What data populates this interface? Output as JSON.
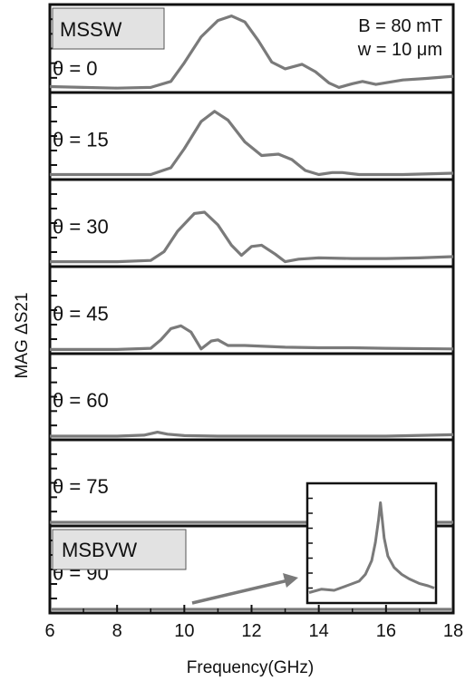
{
  "chart_data": {
    "type": "line",
    "title": "",
    "xlabel": "Frequency(GHz)",
    "ylabel": "MAG ΔS21",
    "xlim": [
      6,
      18
    ],
    "x_ticks": [
      6,
      8,
      10,
      12,
      14,
      16,
      18
    ],
    "annotation": {
      "field": "B = 80 mT",
      "width": "w = 10 μm"
    },
    "mode_labels": {
      "top": "MSSW",
      "bottom": "MSBVW"
    },
    "line_color": "#7a7a7a",
    "label_box_color": "#e2e2e2",
    "panels": [
      {
        "label": "θ = 0",
        "theta": 0,
        "points": [
          [
            6.0,
            0.03
          ],
          [
            7.0,
            0.02
          ],
          [
            8.0,
            0.01
          ],
          [
            9.0,
            0.02
          ],
          [
            9.6,
            0.1
          ],
          [
            10.0,
            0.35
          ],
          [
            10.5,
            0.7
          ],
          [
            11.0,
            0.92
          ],
          [
            11.4,
            0.98
          ],
          [
            11.8,
            0.9
          ],
          [
            12.2,
            0.65
          ],
          [
            12.6,
            0.36
          ],
          [
            13.0,
            0.27
          ],
          [
            13.5,
            0.33
          ],
          [
            13.9,
            0.23
          ],
          [
            14.3,
            0.08
          ],
          [
            14.6,
            0.02
          ],
          [
            15.0,
            0.07
          ],
          [
            15.3,
            0.1
          ],
          [
            15.7,
            0.06
          ],
          [
            16.5,
            0.12
          ],
          [
            17.2,
            0.14
          ],
          [
            18.0,
            0.17
          ]
        ]
      },
      {
        "label": "θ = 15",
        "theta": 15,
        "points": [
          [
            6.0,
            0.02
          ],
          [
            8.0,
            0.02
          ],
          [
            9.0,
            0.02
          ],
          [
            9.6,
            0.12
          ],
          [
            10.0,
            0.4
          ],
          [
            10.5,
            0.8
          ],
          [
            10.9,
            0.95
          ],
          [
            11.3,
            0.82
          ],
          [
            11.8,
            0.5
          ],
          [
            12.3,
            0.3
          ],
          [
            12.8,
            0.32
          ],
          [
            13.2,
            0.24
          ],
          [
            13.6,
            0.08
          ],
          [
            14.0,
            0.02
          ],
          [
            14.4,
            0.05
          ],
          [
            14.7,
            0.05
          ],
          [
            15.2,
            0.02
          ],
          [
            16.5,
            0.02
          ],
          [
            18.0,
            0.04
          ]
        ]
      },
      {
        "label": "θ = 30",
        "theta": 30,
        "points": [
          [
            6.0,
            0.02
          ],
          [
            8.0,
            0.02
          ],
          [
            9.0,
            0.04
          ],
          [
            9.4,
            0.18
          ],
          [
            9.8,
            0.5
          ],
          [
            10.3,
            0.78
          ],
          [
            10.6,
            0.8
          ],
          [
            11.0,
            0.6
          ],
          [
            11.4,
            0.28
          ],
          [
            11.7,
            0.12
          ],
          [
            12.0,
            0.26
          ],
          [
            12.3,
            0.28
          ],
          [
            12.7,
            0.14
          ],
          [
            13.0,
            0.02
          ],
          [
            13.4,
            0.06
          ],
          [
            14.0,
            0.08
          ],
          [
            15.0,
            0.07
          ],
          [
            16.0,
            0.07
          ],
          [
            17.0,
            0.08
          ],
          [
            18.0,
            0.1
          ]
        ]
      },
      {
        "label": "θ = 45",
        "theta": 45,
        "points": [
          [
            6.0,
            0.01
          ],
          [
            8.0,
            0.01
          ],
          [
            9.0,
            0.03
          ],
          [
            9.3,
            0.18
          ],
          [
            9.6,
            0.38
          ],
          [
            9.9,
            0.43
          ],
          [
            10.2,
            0.32
          ],
          [
            10.5,
            0.02
          ],
          [
            10.8,
            0.16
          ],
          [
            11.0,
            0.18
          ],
          [
            11.3,
            0.08
          ],
          [
            11.8,
            0.08
          ],
          [
            13.0,
            0.05
          ],
          [
            14.0,
            0.04
          ],
          [
            15.0,
            0.04
          ],
          [
            16.0,
            0.03
          ],
          [
            18.0,
            0.02
          ]
        ]
      },
      {
        "label": "θ = 60",
        "theta": 60,
        "points": [
          [
            6.0,
            0.0
          ],
          [
            8.0,
            0.0
          ],
          [
            8.8,
            0.02
          ],
          [
            9.2,
            0.08
          ],
          [
            9.5,
            0.04
          ],
          [
            10.0,
            0.01
          ],
          [
            11.0,
            0.0
          ],
          [
            12.0,
            0.0
          ],
          [
            14.0,
            0.0
          ],
          [
            16.0,
            0.0
          ],
          [
            18.0,
            0.03
          ]
        ]
      },
      {
        "label": "θ = 75",
        "theta": 75,
        "points": [
          [
            6.0,
            0.0
          ],
          [
            10.0,
            0.0
          ],
          [
            12.0,
            0.0
          ],
          [
            14.0,
            0.0
          ],
          [
            16.0,
            0.0
          ],
          [
            18.0,
            0.0
          ]
        ]
      },
      {
        "label": "θ = 90",
        "theta": 90,
        "points": [
          [
            6.0,
            0.0
          ],
          [
            10.0,
            0.0
          ],
          [
            14.0,
            0.0
          ],
          [
            18.0,
            0.0
          ]
        ]
      }
    ],
    "inset": {
      "x_range": [
        0,
        1
      ],
      "y_range": [
        0,
        1
      ],
      "points": [
        [
          0.0,
          0.06
        ],
        [
          0.1,
          0.09
        ],
        [
          0.2,
          0.08
        ],
        [
          0.3,
          0.12
        ],
        [
          0.4,
          0.16
        ],
        [
          0.45,
          0.22
        ],
        [
          0.5,
          0.34
        ],
        [
          0.53,
          0.5
        ],
        [
          0.555,
          0.7
        ],
        [
          0.57,
          0.85
        ],
        [
          0.585,
          0.7
        ],
        [
          0.6,
          0.54
        ],
        [
          0.63,
          0.38
        ],
        [
          0.68,
          0.28
        ],
        [
          0.74,
          0.22
        ],
        [
          0.8,
          0.18
        ],
        [
          0.88,
          0.14
        ],
        [
          0.95,
          0.12
        ],
        [
          1.0,
          0.1
        ]
      ]
    }
  }
}
